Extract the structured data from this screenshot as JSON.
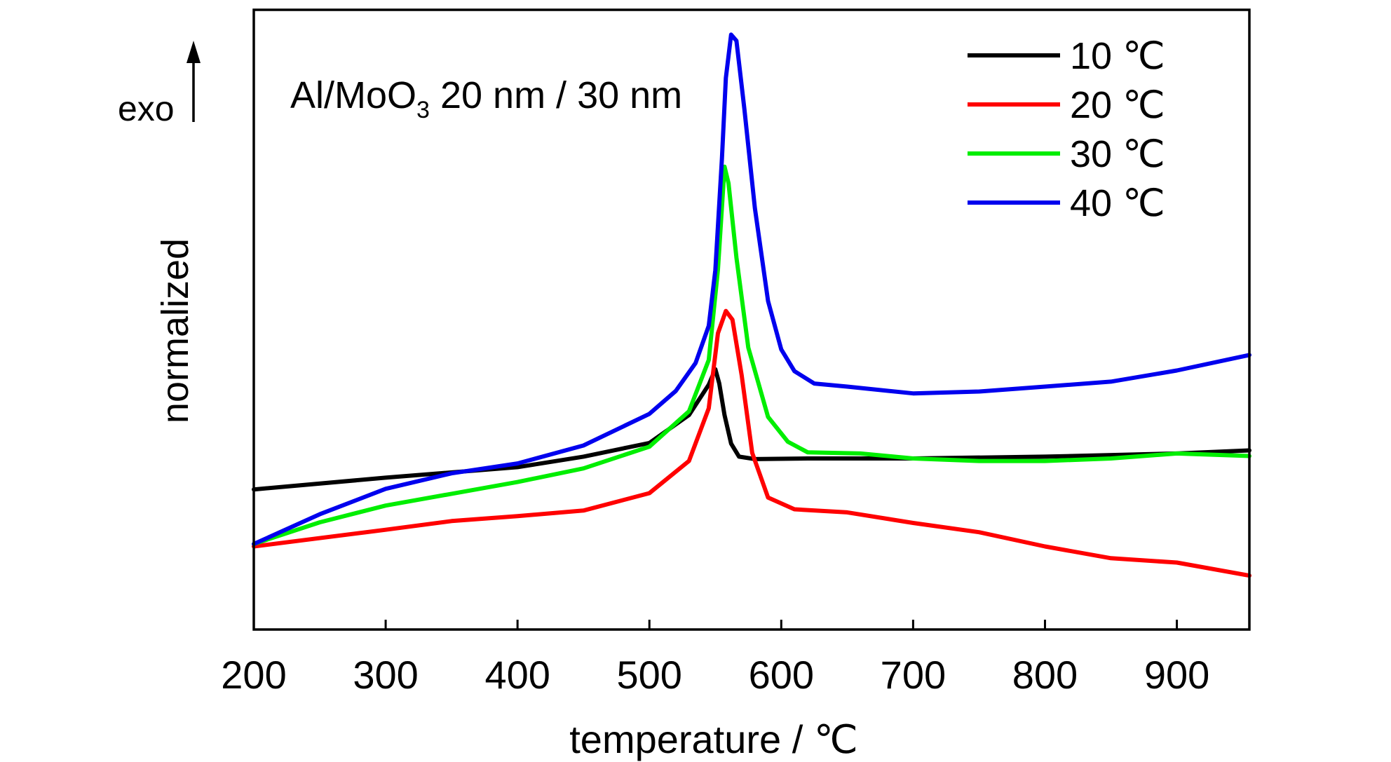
{
  "chart_data": {
    "type": "line",
    "xlabel": "temperature / ℃",
    "ylabel": "normalized",
    "exo_label": "exo",
    "annotation": {
      "main": "Al/MoO",
      "sub": "3",
      "rest": " 20 nm / 30 nm"
    },
    "xlim": [
      200,
      955
    ],
    "ylim": [
      0,
      1
    ],
    "xticks": [
      200,
      300,
      400,
      500,
      600,
      700,
      800,
      900
    ],
    "xtick_labels": [
      "200",
      "300",
      "400",
      "500",
      "600",
      "700",
      "800",
      "900"
    ],
    "y_ticks_shown": false,
    "legend_position": "top-right",
    "series": [
      {
        "name": "10 ℃",
        "color": "#000000",
        "points": [
          [
            200,
            0.226
          ],
          [
            300,
            0.245
          ],
          [
            400,
            0.262
          ],
          [
            450,
            0.279
          ],
          [
            500,
            0.301
          ],
          [
            530,
            0.346
          ],
          [
            545,
            0.395
          ],
          [
            550,
            0.42
          ],
          [
            553,
            0.397
          ],
          [
            557,
            0.346
          ],
          [
            562,
            0.3
          ],
          [
            568,
            0.279
          ],
          [
            580,
            0.275
          ],
          [
            620,
            0.276
          ],
          [
            700,
            0.276
          ],
          [
            800,
            0.279
          ],
          [
            900,
            0.284
          ],
          [
            955,
            0.289
          ]
        ]
      },
      {
        "name": "20 ℃",
        "color": "#ff0000",
        "points": [
          [
            200,
            0.134
          ],
          [
            300,
            0.161
          ],
          [
            350,
            0.175
          ],
          [
            400,
            0.183
          ],
          [
            450,
            0.192
          ],
          [
            500,
            0.22
          ],
          [
            530,
            0.272
          ],
          [
            545,
            0.357
          ],
          [
            552,
            0.478
          ],
          [
            558,
            0.514
          ],
          [
            563,
            0.5
          ],
          [
            570,
            0.41
          ],
          [
            578,
            0.285
          ],
          [
            590,
            0.213
          ],
          [
            610,
            0.194
          ],
          [
            650,
            0.189
          ],
          [
            700,
            0.172
          ],
          [
            750,
            0.157
          ],
          [
            800,
            0.134
          ],
          [
            850,
            0.115
          ],
          [
            900,
            0.108
          ],
          [
            955,
            0.087
          ]
        ]
      },
      {
        "name": "30 ℃",
        "color": "#00ee00",
        "points": [
          [
            200,
            0.138
          ],
          [
            250,
            0.173
          ],
          [
            300,
            0.2
          ],
          [
            350,
            0.219
          ],
          [
            400,
            0.238
          ],
          [
            450,
            0.26
          ],
          [
            500,
            0.295
          ],
          [
            530,
            0.352
          ],
          [
            545,
            0.435
          ],
          [
            552,
            0.581
          ],
          [
            557,
            0.747
          ],
          [
            560,
            0.72
          ],
          [
            566,
            0.6
          ],
          [
            575,
            0.455
          ],
          [
            590,
            0.343
          ],
          [
            605,
            0.303
          ],
          [
            620,
            0.286
          ],
          [
            660,
            0.284
          ],
          [
            700,
            0.276
          ],
          [
            750,
            0.272
          ],
          [
            800,
            0.272
          ],
          [
            850,
            0.276
          ],
          [
            900,
            0.284
          ],
          [
            955,
            0.28
          ]
        ]
      },
      {
        "name": "40 ℃",
        "color": "#0000ee",
        "points": [
          [
            200,
            0.138
          ],
          [
            250,
            0.186
          ],
          [
            300,
            0.227
          ],
          [
            350,
            0.252
          ],
          [
            400,
            0.268
          ],
          [
            450,
            0.297
          ],
          [
            500,
            0.348
          ],
          [
            520,
            0.385
          ],
          [
            535,
            0.43
          ],
          [
            545,
            0.49
          ],
          [
            550,
            0.58
          ],
          [
            555,
            0.76
          ],
          [
            558,
            0.89
          ],
          [
            562,
            0.96
          ],
          [
            566,
            0.95
          ],
          [
            572,
            0.84
          ],
          [
            580,
            0.68
          ],
          [
            590,
            0.53
          ],
          [
            600,
            0.452
          ],
          [
            610,
            0.417
          ],
          [
            625,
            0.397
          ],
          [
            650,
            0.392
          ],
          [
            700,
            0.381
          ],
          [
            750,
            0.384
          ],
          [
            800,
            0.392
          ],
          [
            850,
            0.4
          ],
          [
            900,
            0.418
          ],
          [
            955,
            0.443
          ]
        ]
      }
    ]
  }
}
